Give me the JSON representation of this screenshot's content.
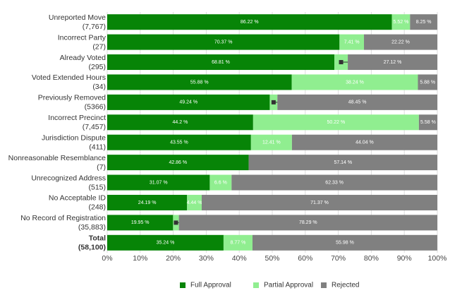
{
  "chart_data": {
    "type": "stacked_bar_horizontal",
    "categories": [
      "Unreported Move",
      "Incorrect Party",
      "Already Voted",
      "Voted Extended Hours",
      "Previously Removed",
      "Incorrect Precinct",
      "Jurisdiction Dispute",
      "Nonreasonable Resemblance",
      "Unrecognized Address",
      "No Acceptable ID",
      "No Record of Registration",
      "Total"
    ],
    "category_counts": [
      "(7,767)",
      "(27)",
      "(295)",
      "(34)",
      "(5366)",
      "(7,457)",
      "(411)",
      "(7)",
      "(515)",
      "(248)",
      "(35,883)",
      "(58,100)"
    ],
    "series": [
      {
        "name": "Full Approval",
        "color": "#078407",
        "values": [
          86.22,
          70.37,
          68.81,
          55.88,
          49.24,
          44.2,
          43.55,
          42.86,
          31.07,
          24.19,
          19.95,
          35.24
        ],
        "value_labels": [
          "86.22 %",
          "70.37 %",
          "68.81 %",
          "55.88 %",
          "49.24 %",
          "44.2 %",
          "43.55 %",
          "42.86 %",
          "31.07 %",
          "24.19 %",
          "19.95 %",
          "35.24 %"
        ]
      },
      {
        "name": "Partial Approval",
        "color": "#90ee90",
        "values": [
          5.52,
          7.41,
          4.07,
          38.24,
          2.31,
          50.22,
          12.41,
          null,
          6.6,
          4.44,
          1.76,
          8.77
        ],
        "value_labels": [
          "5.52 %",
          "7.41 %",
          "4.07 %",
          "38.24 %",
          "2.31 %",
          "50.22 %",
          "12.41 %",
          null,
          "6.6 %",
          "4.44 %",
          "1.76 %",
          "8.77 %"
        ]
      },
      {
        "name": "Rejected",
        "color": "#808080",
        "values": [
          8.25,
          22.22,
          27.12,
          5.88,
          48.45,
          5.58,
          44.04,
          57.14,
          62.33,
          71.37,
          78.29,
          55.98
        ],
        "value_labels": [
          "8.25 %",
          "22.22 %",
          "27.12 %",
          "5.88 %",
          "48.45 %",
          "5.58 %",
          "44.04 %",
          "57.14 %",
          "62.33 %",
          "71.37 %",
          "78.29 %",
          "55.98 %"
        ]
      }
    ],
    "xlim": [
      0,
      100
    ],
    "xticks": [
      {
        "value": 0,
        "label": "0%"
      },
      {
        "value": 10,
        "label": "10%"
      },
      {
        "value": 20,
        "label": "20%"
      },
      {
        "value": 30,
        "label": "30%"
      },
      {
        "value": 40,
        "label": "40%"
      },
      {
        "value": 50,
        "label": "50%"
      },
      {
        "value": 60,
        "label": "60%"
      },
      {
        "value": 70,
        "label": "70%"
      },
      {
        "value": 80,
        "label": "80%"
      },
      {
        "value": 90,
        "label": "90%"
      },
      {
        "value": 100,
        "label": "100%"
      }
    ],
    "grid": true,
    "legend": "bottom"
  }
}
